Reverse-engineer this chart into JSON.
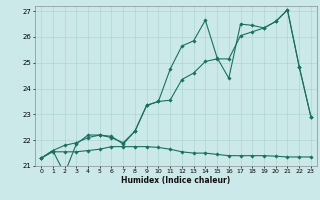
{
  "xlabel": "Humidex (Indice chaleur)",
  "xlim": [
    -0.5,
    23.5
  ],
  "ylim": [
    21.0,
    27.2
  ],
  "yticks": [
    21,
    22,
    23,
    24,
    25,
    26,
    27
  ],
  "xticks": [
    0,
    1,
    2,
    3,
    4,
    5,
    6,
    7,
    8,
    9,
    10,
    11,
    12,
    13,
    14,
    15,
    16,
    17,
    18,
    19,
    20,
    21,
    22,
    23
  ],
  "bg_color": "#cce9e9",
  "grid_color": "#aed4d4",
  "line_color": "#1a7060",
  "line1_x": [
    0,
    1,
    2,
    3,
    4,
    5,
    6,
    7,
    8,
    9,
    10,
    11,
    12,
    13,
    14,
    15,
    16,
    17,
    18,
    19,
    20,
    21,
    22,
    23
  ],
  "line1_y": [
    21.3,
    21.6,
    20.7,
    21.85,
    22.2,
    22.2,
    22.15,
    21.85,
    22.35,
    23.35,
    23.5,
    24.75,
    25.65,
    25.85,
    26.65,
    25.2,
    24.4,
    26.5,
    26.45,
    26.35,
    26.6,
    27.05,
    24.85,
    22.9
  ],
  "line2_x": [
    0,
    1,
    2,
    3,
    4,
    5,
    6,
    7,
    8,
    9,
    10,
    11,
    12,
    13,
    14,
    15,
    16,
    17,
    18,
    19,
    20,
    21,
    22,
    23
  ],
  "line2_y": [
    21.3,
    21.6,
    21.8,
    21.9,
    22.1,
    22.2,
    22.1,
    21.9,
    22.35,
    23.35,
    23.5,
    23.55,
    24.35,
    24.6,
    25.05,
    25.15,
    25.15,
    26.05,
    26.2,
    26.35,
    26.6,
    27.05,
    24.85,
    22.9
  ],
  "line3_x": [
    0,
    1,
    2,
    3,
    4,
    5,
    6,
    7,
    8,
    9,
    10,
    11,
    12,
    13,
    14,
    15,
    16,
    17,
    18,
    19,
    20,
    21,
    22,
    23
  ],
  "line3_y": [
    21.3,
    21.55,
    21.55,
    21.55,
    21.6,
    21.65,
    21.75,
    21.75,
    21.75,
    21.75,
    21.72,
    21.65,
    21.55,
    21.5,
    21.5,
    21.45,
    21.4,
    21.4,
    21.4,
    21.4,
    21.38,
    21.35,
    21.35,
    21.35
  ]
}
